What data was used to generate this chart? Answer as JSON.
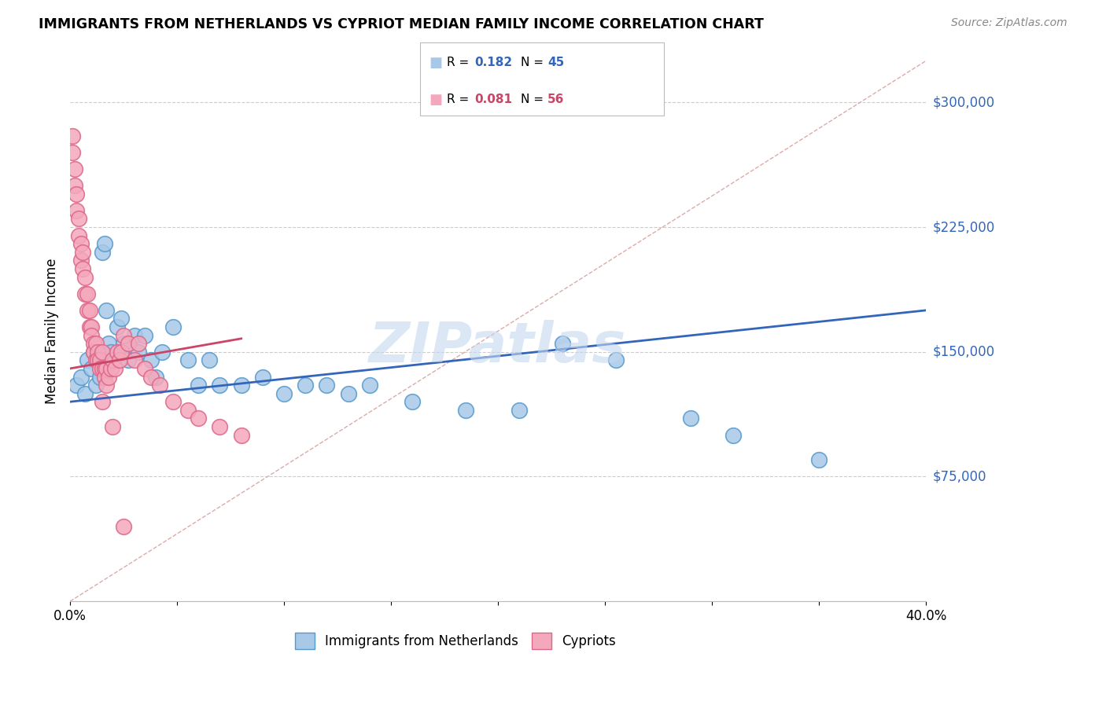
{
  "title": "IMMIGRANTS FROM NETHERLANDS VS CYPRIOT MEDIAN FAMILY INCOME CORRELATION CHART",
  "source": "Source: ZipAtlas.com",
  "ylabel": "Median Family Income",
  "x_min": 0.0,
  "x_max": 0.4,
  "y_min": 0,
  "y_max": 325000,
  "yticks": [
    0,
    75000,
    150000,
    225000,
    300000
  ],
  "xticks": [
    0.0,
    0.05,
    0.1,
    0.15,
    0.2,
    0.25,
    0.3,
    0.35,
    0.4
  ],
  "xtick_labels": [
    "0.0%",
    "",
    "",
    "",
    "",
    "",
    "",
    "",
    "40.0%"
  ],
  "series1_label": "Immigrants from Netherlands",
  "series1_color": "#a8c8e8",
  "series1_edge": "#5599cc",
  "series1_R": "0.182",
  "series1_N": "45",
  "series1_line_color": "#3366bb",
  "series2_label": "Cypriots",
  "series2_color": "#f4a8bc",
  "series2_edge": "#dd6688",
  "series2_R": "0.081",
  "series2_N": "56",
  "series2_line_color": "#cc4466",
  "diagonal_line_color": "#ddaaaa",
  "background_color": "#ffffff",
  "grid_color": "#cccccc",
  "ytick_label_color": "#3366bb",
  "watermark": "ZIPatlas",
  "series1_x": [
    0.003,
    0.005,
    0.007,
    0.008,
    0.01,
    0.011,
    0.012,
    0.013,
    0.014,
    0.015,
    0.016,
    0.017,
    0.018,
    0.019,
    0.02,
    0.022,
    0.024,
    0.025,
    0.027,
    0.03,
    0.032,
    0.035,
    0.038,
    0.04,
    0.043,
    0.048,
    0.055,
    0.06,
    0.065,
    0.07,
    0.08,
    0.09,
    0.1,
    0.11,
    0.12,
    0.13,
    0.14,
    0.16,
    0.185,
    0.21,
    0.23,
    0.255,
    0.29,
    0.31,
    0.35
  ],
  "series1_y": [
    130000,
    135000,
    125000,
    145000,
    140000,
    150000,
    130000,
    145000,
    135000,
    210000,
    215000,
    175000,
    155000,
    150000,
    145000,
    165000,
    170000,
    155000,
    145000,
    160000,
    150000,
    160000,
    145000,
    135000,
    150000,
    165000,
    145000,
    130000,
    145000,
    130000,
    130000,
    135000,
    125000,
    130000,
    130000,
    125000,
    130000,
    120000,
    115000,
    115000,
    155000,
    145000,
    110000,
    100000,
    85000
  ],
  "series2_x": [
    0.001,
    0.001,
    0.002,
    0.002,
    0.003,
    0.003,
    0.004,
    0.004,
    0.005,
    0.005,
    0.006,
    0.006,
    0.007,
    0.007,
    0.008,
    0.008,
    0.009,
    0.009,
    0.01,
    0.01,
    0.011,
    0.011,
    0.012,
    0.012,
    0.013,
    0.013,
    0.014,
    0.014,
    0.015,
    0.015,
    0.016,
    0.016,
    0.017,
    0.017,
    0.018,
    0.019,
    0.02,
    0.021,
    0.022,
    0.023,
    0.024,
    0.025,
    0.027,
    0.03,
    0.032,
    0.035,
    0.038,
    0.042,
    0.048,
    0.055,
    0.06,
    0.07,
    0.08,
    0.015,
    0.02,
    0.025
  ],
  "series2_y": [
    270000,
    280000,
    250000,
    260000,
    235000,
    245000,
    220000,
    230000,
    215000,
    205000,
    210000,
    200000,
    195000,
    185000,
    185000,
    175000,
    175000,
    165000,
    165000,
    160000,
    155000,
    150000,
    155000,
    145000,
    150000,
    145000,
    145000,
    140000,
    150000,
    140000,
    140000,
    135000,
    140000,
    130000,
    135000,
    140000,
    145000,
    140000,
    150000,
    145000,
    150000,
    160000,
    155000,
    145000,
    155000,
    140000,
    135000,
    130000,
    120000,
    115000,
    110000,
    105000,
    100000,
    120000,
    105000,
    45000
  ]
}
